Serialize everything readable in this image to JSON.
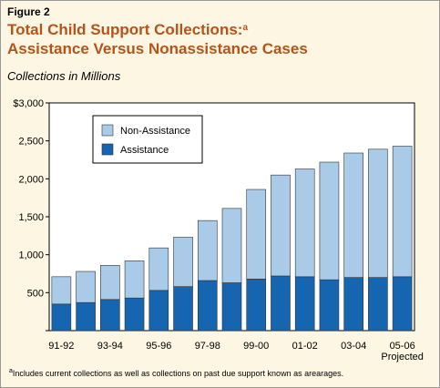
{
  "figure_label": "Figure 2",
  "title_line1": "Total Child Support Collections:",
  "title_sup": "a",
  "title_line2": "Assistance Versus Nonassistance Cases",
  "subtitle": "Collections in Millions",
  "footnote_sup": "a",
  "footnote": "Includes current collections as well as collections on past due support known as arearages.",
  "colors": {
    "title": "#b5541a",
    "non_assistance": "#a9cbe8",
    "assistance": "#1565b0",
    "plot_bg": "#ffffff",
    "page_bg": "#fdf6e3"
  },
  "chart_data": {
    "type": "bar",
    "stacked": true,
    "categories": [
      "91-92",
      "92-93",
      "93-94",
      "94-95",
      "95-96",
      "96-97",
      "97-98",
      "98-99",
      "99-00",
      "00-01",
      "01-02",
      "02-03",
      "03-04",
      "04-05",
      "05-06"
    ],
    "category_tick_labels": [
      "91-92",
      "",
      "93-94",
      "",
      "95-96",
      "",
      "97-98",
      "",
      "99-00",
      "",
      "01-02",
      "",
      "03-04",
      "",
      "05-06"
    ],
    "category_sublabel": "Projected",
    "series": [
      {
        "name": "Assistance",
        "values": [
          350,
          370,
          410,
          430,
          530,
          580,
          660,
          630,
          680,
          720,
          710,
          670,
          700,
          700,
          710
        ]
      },
      {
        "name": "Non-Assistance",
        "values": [
          360,
          410,
          450,
          490,
          560,
          650,
          790,
          980,
          1180,
          1330,
          1420,
          1550,
          1640,
          1690,
          1720
        ]
      }
    ],
    "ylim": [
      0,
      3000
    ],
    "yticks": [
      0,
      500,
      1000,
      1500,
      2000,
      2500,
      3000
    ],
    "ytick_labels": [
      "",
      "500",
      "1,000",
      "1,500",
      "2,000",
      "2,500",
      "$3,000"
    ],
    "legend": {
      "position": "top-left",
      "entries": [
        "Non-Assistance",
        "Assistance"
      ]
    },
    "grid": false
  }
}
